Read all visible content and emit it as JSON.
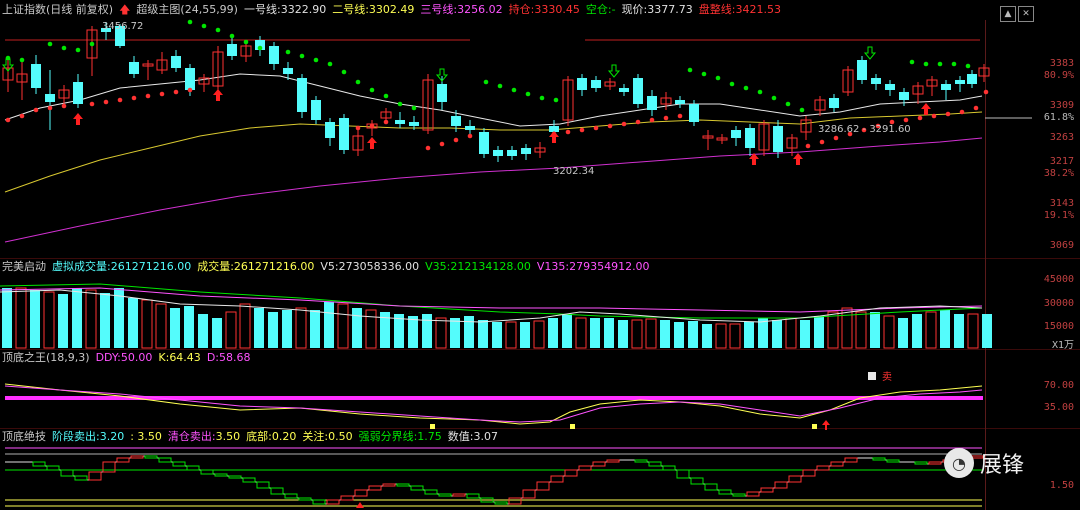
{
  "main": {
    "title": "上证指数(日线 前复权)",
    "indicator": "超级主图(24,55,99)",
    "l1_label": "一号线:",
    "l1_value": "3322.90",
    "l2_label": "二号线:",
    "l2_value": "3302.49",
    "l3_label": "三号线:",
    "l3_value": "3256.02",
    "hold_label": "持仓:",
    "hold_value": "3330.45",
    "empty_label": "空仓:",
    "empty_value": "-",
    "price_label": "现价:",
    "price_value": "3377.73",
    "cost_label": "盘整线:",
    "cost_value": "3421.53",
    "high_mark": "3456.72",
    "low_mark": "3202.34",
    "mid_mark": "3286.62 - 3291.60",
    "y_labels": [
      "3383",
      "80.9%",
      "3309",
      "61.8%",
      "3263",
      "3217",
      "38.2%",
      "3143",
      "19.1%",
      "3069"
    ]
  },
  "vol": {
    "title": "完美启动",
    "vvol_label": "虚拟成交量:",
    "vvol_value": "261271216.00",
    "vol_label": "成交量:",
    "vol_value": "261271216.00",
    "v5_label": "V5:",
    "v5_value": "273058336.00",
    "v35_label": "V35:",
    "v35_value": "212134128.00",
    "v135_label": "V135:",
    "v135_value": "279354912.00",
    "y_labels": [
      "45000",
      "30000",
      "15000",
      "X1万"
    ]
  },
  "kdj": {
    "title": "顶底之王",
    "params": "(18,9,3)",
    "ddy_label": "DDY:",
    "ddy_value": "50.00",
    "k_label": "K:",
    "k_value": "64.43",
    "d_label": "D:",
    "d_value": "58.68",
    "sell_mark": "卖",
    "y_labels": [
      "70.00",
      "35.00"
    ]
  },
  "tops": {
    "title": "顶底绝技",
    "stage_label": "阶段卖出:",
    "stage_value": "3.20",
    "stage2_value": ": 3.50",
    "clear_label": "清仓卖出:",
    "clear_value": "3.50",
    "bottom_label": "底部:",
    "bottom_value": "0.20",
    "watch_label": "关注:",
    "watch_value": "0.50",
    "strength_label": "强弱分界线:",
    "strength_value": "1.75",
    "num_label": "数值:",
    "num_value": "3.07",
    "y_labels": [
      "1.50"
    ]
  },
  "watermark": {
    "text": "展锋"
  },
  "colors": {
    "up": "#ff3232",
    "down": "#54fcfc",
    "yellow": "#ffff54",
    "magenta": "#ff54ff",
    "green": "#00e600"
  }
}
